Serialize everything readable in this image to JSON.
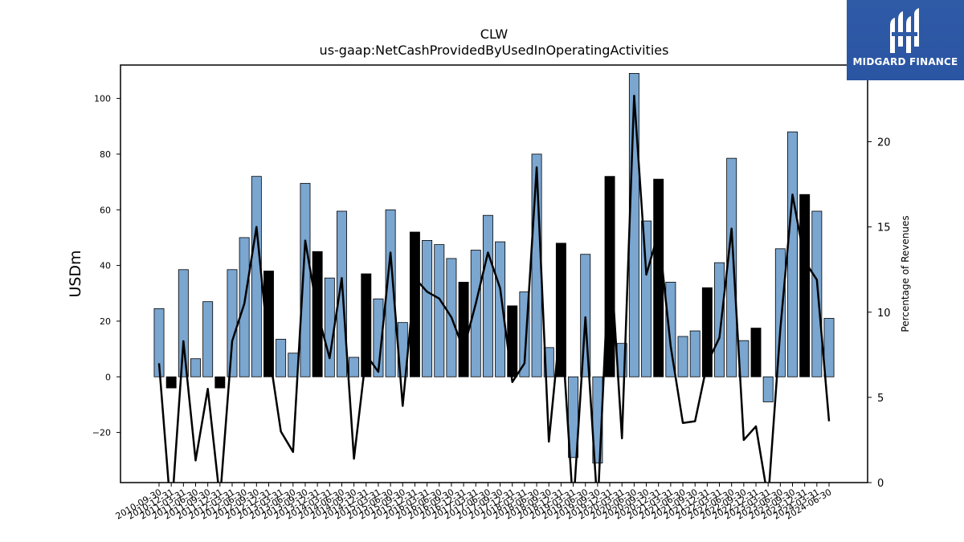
{
  "chart_data": {
    "type": "bar+line",
    "title": "CLW",
    "subtitle": "us-gaap:NetCashProvidedByUsedInOperatingActivities",
    "ylabel": "USDm",
    "y2label": "Percentage of Revenues",
    "ylim": [
      -38,
      112
    ],
    "y2lim": [
      0,
      24.5
    ],
    "yticks": [
      -20,
      0,
      20,
      40,
      60,
      80,
      100
    ],
    "y2ticks": [
      0,
      5,
      10,
      15,
      20
    ],
    "categories": [
      "2010-09-30",
      "2010-12-31",
      "2011-03-31",
      "2011-06-30",
      "2011-09-30",
      "2011-12-31",
      "2012-03-31",
      "2012-06-30",
      "2012-09-30",
      "2012-12-31",
      "2013-03-31",
      "2013-06-30",
      "2013-09-30",
      "2013-12-31",
      "2014-03-31",
      "2014-06-30",
      "2014-09-30",
      "2014-12-31",
      "2015-03-31",
      "2015-06-30",
      "2015-09-30",
      "2015-12-31",
      "2016-03-31",
      "2016-06-30",
      "2016-09-30",
      "2016-12-31",
      "2017-03-31",
      "2017-06-30",
      "2017-09-30",
      "2017-12-31",
      "2018-03-31",
      "2018-06-30",
      "2018-09-30",
      "2018-12-31",
      "2019-03-31",
      "2019-06-30",
      "2019-09-30",
      "2019-12-31",
      "2020-03-31",
      "2020-06-30",
      "2020-09-30",
      "2020-12-31",
      "2021-03-31",
      "2021-06-30",
      "2021-09-30",
      "2021-12-31",
      "2022-03-31",
      "2022-06-30",
      "2022-09-30",
      "2022-12-31",
      "2023-03-31",
      "2023-06-30",
      "2023-09-30",
      "2023-12-31",
      "2024-03-31",
      "2024-06-30"
    ],
    "series": [
      {
        "values": [
          24.5,
          -4,
          38.5,
          6.5,
          27,
          -4,
          38.5,
          50,
          72,
          38,
          13.5,
          8.5,
          69.5,
          45,
          35.5,
          59.5,
          7,
          37,
          28,
          60,
          19.5,
          52,
          49,
          47.5,
          42.5,
          34,
          45.5,
          58,
          48.5,
          25.5,
          30.5,
          80,
          10.5,
          48,
          -29,
          44,
          -31,
          72,
          12,
          109,
          56,
          71,
          34,
          14.5,
          16.5,
          32,
          41,
          78.5,
          13,
          17.5,
          -9,
          46,
          88,
          65.5,
          59.5,
          21
        ],
        "highlight": [
          0,
          1,
          0,
          0,
          0,
          1,
          0,
          0,
          0,
          1,
          0,
          0,
          0,
          1,
          0,
          0,
          0,
          1,
          0,
          0,
          0,
          1,
          0,
          0,
          0,
          1,
          0,
          0,
          0,
          1,
          0,
          0,
          0,
          1,
          0,
          0,
          0,
          1,
          0,
          0,
          0,
          1,
          0,
          0,
          0,
          1,
          0,
          0,
          0,
          1,
          0,
          0,
          0,
          1,
          0,
          0
        ]
      },
      {
        "axis": "right",
        "values": [
          7,
          -2,
          8.3,
          1.3,
          5.5,
          -1,
          8.3,
          10.5,
          15,
          7.8,
          3,
          1.8,
          14.2,
          10,
          7.3,
          12,
          1.4,
          7.5,
          6.5,
          13.5,
          4.5,
          12,
          11.2,
          10.8,
          9.7,
          7.8,
          10.5,
          13.5,
          11.4,
          5.9,
          7,
          18.5,
          2.4,
          9.7,
          -1.5,
          9.7,
          -1.5,
          14,
          2.6,
          22.7,
          12.2,
          14.7,
          8,
          3.5,
          3.6,
          7,
          8.5,
          14.9,
          2.5,
          3.3,
          -1,
          9,
          16.9,
          13,
          11.9,
          3.6
        ]
      }
    ],
    "colors": {
      "bar_light": "#7aa6d0",
      "bar_dark": "#000000",
      "line": "#000000"
    },
    "grid": false
  },
  "logo": {
    "text": "MIDGARD FINANCE"
  }
}
